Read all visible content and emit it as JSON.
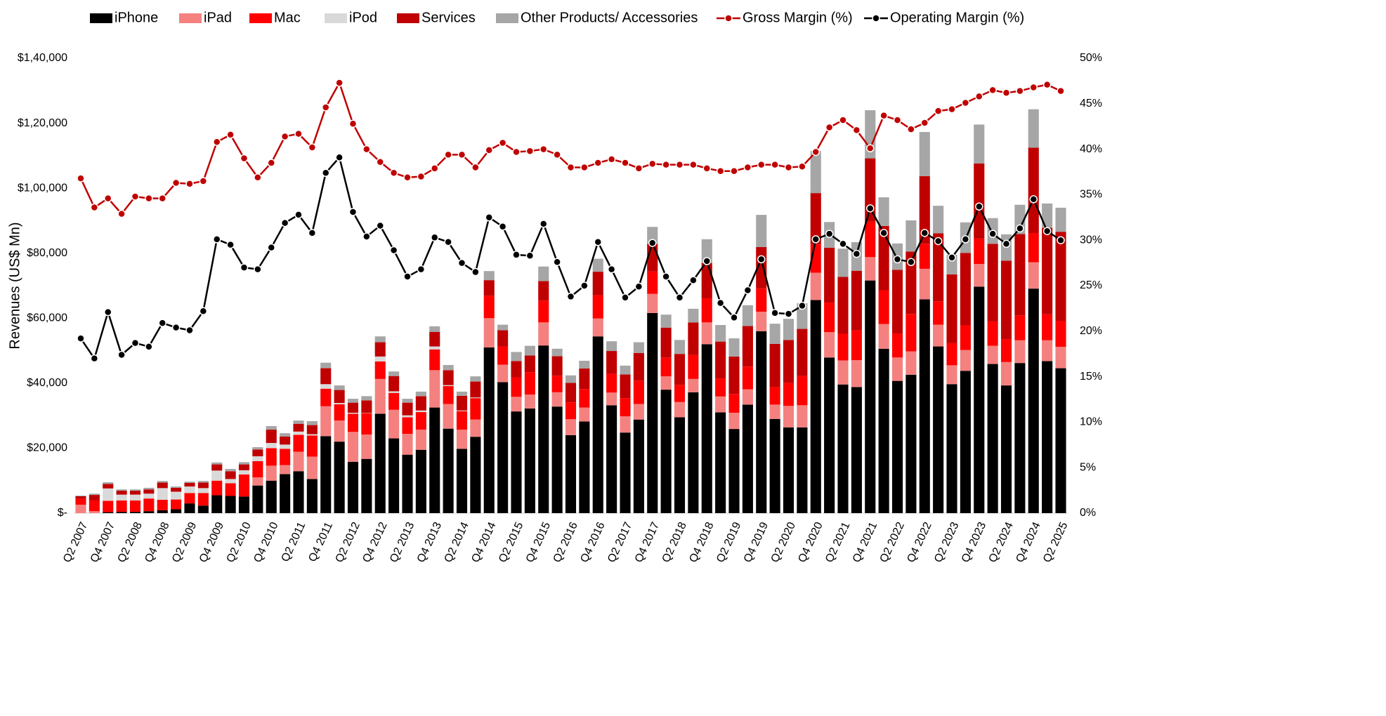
{
  "chart_data": {
    "type": "bar",
    "stacked": true,
    "y_label": "Revenues (US$ Mn)",
    "categories": [
      "Q2 2007",
      null,
      "Q4 2007",
      null,
      "Q2 2008",
      null,
      "Q4 2008",
      null,
      "Q2 2009",
      null,
      "Q4 2009",
      null,
      "Q2 2010",
      null,
      "Q4 2010",
      null,
      "Q2 2011",
      null,
      "Q4 2011",
      null,
      "Q2 2012",
      null,
      "Q4 2012",
      null,
      "Q2 2013",
      null,
      "Q4 2013",
      null,
      "Q2 2014",
      null,
      "Q4 2014",
      null,
      "Q2 2015",
      null,
      "Q4 2015",
      null,
      "Q2 2016",
      null,
      "Q4 2016",
      null,
      "Q2 2017",
      null,
      "Q4 2017",
      null,
      "Q2 2018",
      null,
      "Q4 2018",
      null,
      "Q2 2019",
      null,
      "Q4 2019",
      null,
      "Q2 2020",
      null,
      "Q4 2020",
      null,
      "Q2 2021",
      null,
      "Q4 2021",
      null,
      "Q2 2022",
      null,
      "Q4 2022",
      null,
      "Q2 2023",
      null,
      "Q4 2023",
      null,
      "Q2 2024",
      null,
      "Q4 2024",
      null,
      "Q2 2025"
    ],
    "ylim": [
      0,
      140000
    ],
    "yticks": [
      {
        "value": 0,
        "label": "$-"
      },
      {
        "value": 20000,
        "label": "$20,000"
      },
      {
        "value": 40000,
        "label": "$40,000"
      },
      {
        "value": 60000,
        "label": "$60,000"
      },
      {
        "value": 80000,
        "label": "$80,000"
      },
      {
        "value": 100000,
        "label": "$1,00,000"
      },
      {
        "value": 120000,
        "label": "$1,20,000"
      },
      {
        "value": 140000,
        "label": "$1,40,000"
      }
    ],
    "y2lim": [
      0,
      50
    ],
    "y2ticks": [
      {
        "value": 0,
        "label": "0%"
      },
      {
        "value": 5,
        "label": "5%"
      },
      {
        "value": 10,
        "label": "10%"
      },
      {
        "value": 15,
        "label": "15%"
      },
      {
        "value": 20,
        "label": "20%"
      },
      {
        "value": 25,
        "label": "25%"
      },
      {
        "value": 30,
        "label": "30%"
      },
      {
        "value": 35,
        "label": "35%"
      },
      {
        "value": 40,
        "label": "40%"
      },
      {
        "value": 45,
        "label": "45%"
      },
      {
        "value": 50,
        "label": "50%"
      }
    ],
    "legend": "top",
    "series": [
      {
        "name": "iPhone",
        "color": "#000000",
        "values": [
          0,
          0,
          300,
          400,
          400,
          600,
          900,
          1200,
          3000,
          2300,
          5500,
          5300,
          5100,
          8500,
          10000,
          12000,
          12900,
          10500,
          23700,
          22000,
          15800,
          16700,
          30600,
          23000,
          18000,
          19500,
          32500,
          26000,
          19800,
          23500,
          51000,
          40300,
          31300,
          32200,
          51600,
          32800,
          24000,
          28200,
          54400,
          33200,
          24800,
          28800,
          61600,
          38000,
          29500,
          37200,
          52000,
          31000,
          25900,
          33400,
          56000,
          29000,
          26400,
          26400,
          65600,
          47900,
          39600,
          38800,
          71600,
          50600,
          40700,
          42600,
          65800,
          51300,
          39700,
          43800,
          69700,
          45900,
          39300,
          46200,
          69100,
          46800,
          44600
        ]
      },
      {
        "name": "iPad",
        "color": "#f4817f",
        "values": [
          2600,
          600,
          0,
          0,
          0,
          0,
          0,
          0,
          0,
          0,
          0,
          0,
          0,
          2500,
          4600,
          2800,
          6000,
          6900,
          9200,
          6500,
          9200,
          7500,
          10700,
          8800,
          6400,
          6200,
          11500,
          7600,
          5900,
          5300,
          9000,
          5400,
          4500,
          4300,
          7100,
          4400,
          4900,
          4300,
          5500,
          3900,
          5000,
          4800,
          5900,
          4100,
          4700,
          4100,
          6700,
          4900,
          5000,
          4700,
          6000,
          4400,
          6600,
          6800,
          8400,
          7800,
          7400,
          8300,
          7200,
          7600,
          7200,
          7200,
          9400,
          6700,
          5800,
          6400,
          7000,
          5600,
          7200,
          7000,
          8100,
          6400,
          6600
        ]
      },
      {
        "name": "Mac",
        "color": "#ff0000",
        "values": [
          1800,
          3300,
          3500,
          3500,
          3500,
          3900,
          3200,
          3000,
          3200,
          3900,
          4500,
          3900,
          6800,
          5000,
          5400,
          5000,
          5200,
          6500,
          5400,
          5000,
          5600,
          6600,
          5400,
          5200,
          5100,
          5400,
          6400,
          5500,
          5700,
          6600,
          6900,
          5600,
          6000,
          6900,
          6700,
          5100,
          5200,
          5700,
          7200,
          5800,
          5600,
          7200,
          6900,
          5800,
          5300,
          7400,
          7400,
          5500,
          5800,
          7000,
          7200,
          5400,
          7100,
          9000,
          8700,
          9100,
          8200,
          9200,
          10900,
          10400,
          7400,
          11500,
          7700,
          7200,
          6800,
          7600,
          7800,
          7500,
          7000,
          7700,
          9000,
          8000,
          8000
        ]
      },
      {
        "name": "iPod",
        "color": "#d9d9d9",
        "values": [
          0,
          0,
          3800,
          1800,
          1800,
          1500,
          3600,
          2400,
          2000,
          1500,
          3100,
          1300,
          1300,
          1500,
          1600,
          1300,
          1000,
          400,
          1400,
          400,
          300,
          100,
          1500,
          500,
          600,
          500,
          900,
          300,
          200,
          200,
          0,
          0,
          0,
          0,
          0,
          0,
          0,
          0,
          0,
          0,
          0,
          0,
          0,
          0,
          0,
          0,
          0,
          0,
          0,
          0,
          0,
          0,
          0,
          0,
          0,
          0,
          0,
          0,
          0,
          0,
          0,
          0,
          0,
          0,
          0,
          0,
          0,
          0,
          0,
          0,
          0,
          0,
          0
        ]
      },
      {
        "name": "Services",
        "color": "#c00000",
        "values": [
          800,
          1700,
          1400,
          1200,
          1200,
          1300,
          1700,
          1200,
          1100,
          1700,
          1900,
          2400,
          1800,
          2100,
          4100,
          2500,
          2400,
          2800,
          4900,
          4000,
          3100,
          3800,
          4400,
          4700,
          3900,
          4400,
          4500,
          4600,
          4500,
          4900,
          4800,
          5000,
          5000,
          5100,
          6000,
          6000,
          6000,
          6300,
          7200,
          7000,
          7300,
          8500,
          8500,
          9200,
          9500,
          10000,
          10900,
          11400,
          11500,
          12500,
          12700,
          13300,
          13200,
          14500,
          15800,
          16900,
          17500,
          18300,
          19500,
          19800,
          19600,
          19200,
          20800,
          20900,
          21200,
          22300,
          23100,
          23900,
          24200,
          25000,
          26300,
          26600,
          27400
        ]
      },
      {
        "name": "Other Products/ Accessories",
        "color": "#a6a6a6",
        "values": [
          200,
          400,
          500,
          400,
          400,
          500,
          500,
          400,
          400,
          500,
          600,
          700,
          700,
          700,
          1100,
          1000,
          1000,
          1200,
          1700,
          1400,
          1200,
          1300,
          1800,
          1400,
          1200,
          1400,
          1700,
          1600,
          1300,
          1600,
          2800,
          1700,
          2800,
          3000,
          4500,
          2300,
          2300,
          2400,
          4000,
          3000,
          2700,
          3300,
          5200,
          4000,
          4300,
          4200,
          7300,
          5100,
          5600,
          6400,
          9900,
          6200,
          6500,
          7900,
          13000,
          7900,
          8700,
          8800,
          14800,
          8800,
          8100,
          9600,
          13600,
          8500,
          6000,
          9400,
          12000,
          7900,
          8100,
          9000,
          11800,
          7500,
          7400
        ]
      },
      {
        "name": "Gross Margin (%)",
        "type": "line",
        "axis": "y2",
        "color": "#c00000",
        "values": [
          36.8,
          33.6,
          34.6,
          32.9,
          34.8,
          34.6,
          34.6,
          36.3,
          36.2,
          36.5,
          40.8,
          41.6,
          39.0,
          36.9,
          38.5,
          41.4,
          41.7,
          40.2,
          44.6,
          47.3,
          42.8,
          40.0,
          38.6,
          37.4,
          36.9,
          37.0,
          37.9,
          39.4,
          39.4,
          38.0,
          39.9,
          40.7,
          39.7,
          39.8,
          40.0,
          39.4,
          38.0,
          38.0,
          38.5,
          38.9,
          38.5,
          37.9,
          38.4,
          38.3,
          38.3,
          38.3,
          37.9,
          37.6,
          37.6,
          38.0,
          38.3,
          38.3,
          38.0,
          38.1,
          39.7,
          42.4,
          43.2,
          42.1,
          40.1,
          43.7,
          43.2,
          42.2,
          42.9,
          44.2,
          44.4,
          45.1,
          45.8,
          46.5,
          46.2,
          46.4,
          46.8,
          47.1,
          46.4
        ]
      },
      {
        "name": "Operating Margin (%)",
        "type": "line",
        "axis": "y2",
        "color": "#000000",
        "values": [
          19.2,
          17.0,
          22.1,
          17.4,
          18.7,
          18.3,
          20.9,
          20.4,
          20.1,
          22.2,
          30.1,
          29.5,
          27.0,
          26.8,
          29.2,
          31.9,
          32.8,
          30.8,
          37.4,
          39.1,
          33.1,
          30.4,
          31.6,
          28.9,
          26.0,
          26.8,
          30.3,
          29.8,
          27.5,
          26.5,
          32.5,
          31.5,
          28.4,
          28.3,
          31.8,
          27.6,
          23.8,
          25.0,
          29.8,
          26.8,
          23.7,
          24.9,
          29.7,
          26.0,
          23.7,
          25.6,
          27.7,
          23.1,
          21.5,
          24.5,
          27.9,
          22.0,
          21.9,
          22.8,
          30.1,
          30.7,
          29.6,
          28.5,
          33.5,
          30.8,
          27.9,
          27.6,
          30.8,
          29.9,
          28.1,
          30.1,
          33.7,
          30.7,
          29.6,
          31.3,
          34.5,
          31.0,
          30.0
        ]
      }
    ]
  }
}
